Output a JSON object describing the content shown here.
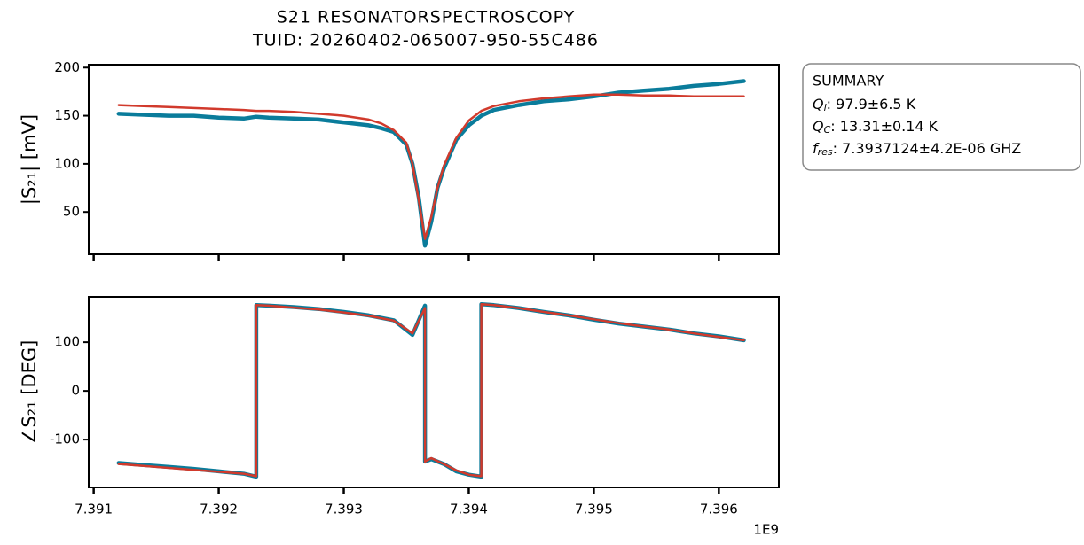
{
  "figure": {
    "title": [
      "S21 RESONATORSPECTROSCOPY",
      "TUID: 20260402-065007-950-55C486"
    ],
    "summary": {
      "heading": "SUMMARY",
      "rows": [
        {
          "symbol": "Q",
          "sub": "l",
          "value": ": 97.9±6.5 K"
        },
        {
          "symbol": "Q",
          "sub": "C",
          "value": ": 13.31±0.14 K"
        },
        {
          "symbol": "f",
          "sub": "res",
          "value": ": 7.3937124±4.2E-06 GHZ"
        }
      ]
    }
  },
  "chart_data": [
    {
      "type": "line",
      "ylabel": "|S₂₁| [mV]",
      "x": [
        7.3912,
        7.3914,
        7.3916,
        7.3918,
        7.392,
        7.3922,
        7.3923,
        7.3924,
        7.3926,
        7.3928,
        7.393,
        7.3932,
        7.3933,
        7.3934,
        7.3935,
        7.39355,
        7.3936,
        7.39365,
        7.3937,
        7.39375,
        7.3938,
        7.3939,
        7.394,
        7.3941,
        7.3942,
        7.3944,
        7.3946,
        7.3948,
        7.395,
        7.3952,
        7.3954,
        7.3956,
        7.3958,
        7.396,
        7.3962
      ],
      "series": [
        {
          "color": "#0a7c9b",
          "values": [
            152,
            151,
            150,
            150,
            148,
            147,
            149,
            148,
            147,
            146,
            143,
            140,
            137,
            133,
            120,
            100,
            65,
            15,
            40,
            75,
            95,
            125,
            140,
            150,
            156,
            161,
            165,
            167,
            170,
            174,
            176,
            178,
            181,
            183,
            186
          ]
        },
        {
          "color": "#d13a2c",
          "values": [
            161,
            160,
            159,
            158,
            157,
            156,
            155,
            155,
            154,
            152,
            150,
            146,
            142,
            135,
            122,
            100,
            62,
            22,
            45,
            75,
            98,
            127,
            145,
            155,
            160,
            165,
            168,
            170,
            172,
            172,
            171,
            171,
            170,
            170,
            170
          ]
        }
      ],
      "xlim": [
        7.39096,
        7.39648
      ],
      "xticks": [
        7.391,
        7.392,
        7.393,
        7.394,
        7.395,
        7.396
      ],
      "xticklabels": false,
      "ylim": [
        6,
        203
      ],
      "yticks": [
        50,
        100,
        150,
        200
      ]
    },
    {
      "type": "line",
      "ylabel": "∠S₂₁ [DEG]",
      "x_offset_text": "1E9",
      "x": [
        7.3912,
        7.3914,
        7.3916,
        7.3918,
        7.392,
        7.3922,
        7.3923,
        7.3923,
        7.3924,
        7.3926,
        7.3928,
        7.393,
        7.3932,
        7.3934,
        7.3935,
        7.39355,
        7.39365,
        7.39365,
        7.3937,
        7.3938,
        7.3939,
        7.394,
        7.3941,
        7.3941,
        7.3942,
        7.3944,
        7.3946,
        7.3948,
        7.395,
        7.3952,
        7.3954,
        7.3956,
        7.3958,
        7.396,
        7.3962
      ],
      "series": [
        {
          "color": "#0a7c9b",
          "values": [
            -148,
            -152,
            -156,
            -160,
            -165,
            -170,
            -176,
            176,
            175,
            172,
            168,
            162,
            155,
            145,
            125,
            115,
            175,
            -145,
            -140,
            -150,
            -165,
            -172,
            -176,
            178,
            176,
            170,
            162,
            155,
            146,
            138,
            132,
            126,
            118,
            112,
            104
          ]
        },
        {
          "color": "#d13a2c",
          "values": [
            -150,
            -154,
            -158,
            -162,
            -166,
            -170,
            -175,
            176,
            175,
            171,
            167,
            161,
            154,
            144,
            127,
            118,
            170,
            -145,
            -138,
            -150,
            -163,
            -172,
            -175,
            178,
            176,
            170,
            162,
            155,
            147,
            139,
            132,
            126,
            118,
            111,
            104
          ]
        }
      ],
      "xlim": [
        7.39096,
        7.39648
      ],
      "xticks": [
        7.391,
        7.392,
        7.393,
        7.394,
        7.395,
        7.396
      ],
      "xticklabels": true,
      "ylim": [
        -198,
        193
      ],
      "yticks": [
        -100,
        0,
        100
      ]
    }
  ]
}
